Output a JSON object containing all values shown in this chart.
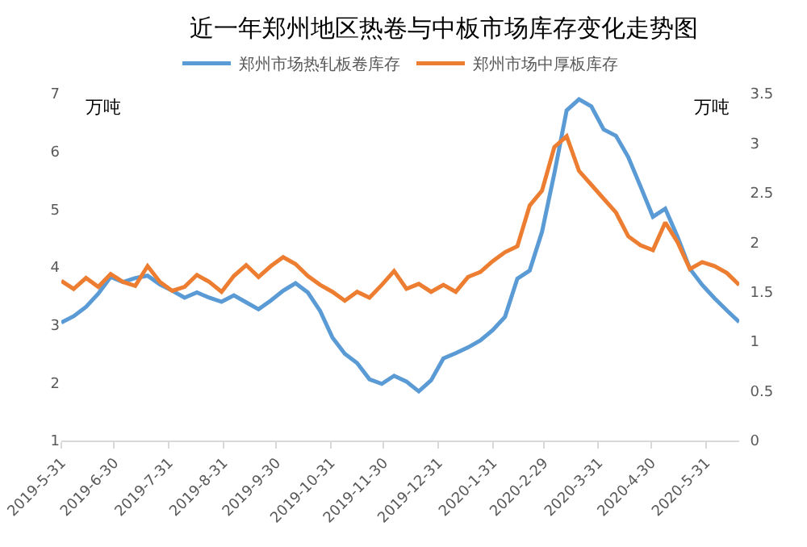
{
  "chart_data": {
    "type": "line",
    "title": "近一年郑州地区热卷与中板市场库存变化走势图",
    "ylabel": "万吨",
    "y2label": "万吨",
    "x": [
      "2019-05-31",
      "2019-06-07",
      "2019-06-14",
      "2019-06-21",
      "2019-06-28",
      "2019-07-05",
      "2019-07-12",
      "2019-07-19",
      "2019-07-26",
      "2019-08-02",
      "2019-08-09",
      "2019-08-16",
      "2019-08-23",
      "2019-08-30",
      "2019-09-06",
      "2019-09-13",
      "2019-09-20",
      "2019-09-27",
      "2019-10-04",
      "2019-10-11",
      "2019-10-18",
      "2019-10-25",
      "2019-11-01",
      "2019-11-08",
      "2019-11-15",
      "2019-11-22",
      "2019-11-29",
      "2019-12-06",
      "2019-12-13",
      "2019-12-20",
      "2019-12-27",
      "2020-01-03",
      "2020-01-10",
      "2020-01-17",
      "2020-01-24",
      "2020-01-31",
      "2020-02-07",
      "2020-02-14",
      "2020-02-21",
      "2020-02-28",
      "2020-03-06",
      "2020-03-13",
      "2020-03-20",
      "2020-03-27",
      "2020-04-03",
      "2020-04-10",
      "2020-04-17",
      "2020-04-24",
      "2020-05-01",
      "2020-05-08",
      "2020-05-15",
      "2020-05-22",
      "2020-05-29",
      "2020-06-05",
      "2020-06-12",
      "2020-06-19"
    ],
    "series": [
      {
        "name": "郑州市场热轧板卷库存",
        "color": "#5b9bd5",
        "values": [
          3.04,
          3.15,
          3.31,
          3.54,
          3.83,
          3.74,
          3.81,
          3.85,
          3.7,
          3.59,
          3.47,
          3.56,
          3.47,
          3.4,
          3.51,
          3.39,
          3.27,
          3.42,
          3.59,
          3.72,
          3.56,
          3.24,
          2.78,
          2.5,
          2.34,
          2.06,
          1.98,
          2.12,
          2.02,
          1.85,
          2.04,
          2.42,
          2.51,
          2.61,
          2.73,
          2.91,
          3.14,
          3.8,
          3.94,
          4.61,
          5.62,
          6.71,
          6.9,
          6.78,
          6.38,
          6.27,
          5.9,
          5.39,
          4.87,
          5.01,
          4.52,
          3.97,
          3.69,
          3.46,
          3.25,
          3.05
        ]
      },
      {
        "name": "郑州市场中厚板库存",
        "color": "#ed7d31",
        "axis": "y2",
        "values": [
          1.61,
          1.53,
          1.64,
          1.55,
          1.68,
          1.6,
          1.56,
          1.76,
          1.6,
          1.51,
          1.55,
          1.67,
          1.6,
          1.5,
          1.66,
          1.77,
          1.65,
          1.76,
          1.85,
          1.78,
          1.66,
          1.57,
          1.5,
          1.41,
          1.5,
          1.44,
          1.57,
          1.71,
          1.53,
          1.58,
          1.5,
          1.57,
          1.5,
          1.65,
          1.7,
          1.81,
          1.9,
          1.96,
          2.37,
          2.52,
          2.96,
          3.07,
          2.72,
          2.58,
          2.44,
          2.3,
          2.06,
          1.97,
          1.92,
          2.2,
          2,
          1.73,
          1.8,
          1.76,
          1.69,
          1.57
        ]
      }
    ],
    "xlim": [
      "2019-05-31",
      "2020-06-19"
    ],
    "xticks": [
      {
        "value": "2019-05-31",
        "label": "2019-5-31"
      },
      {
        "value": "2019-06-30",
        "label": "2019-6-30"
      },
      {
        "value": "2019-07-31",
        "label": "2019-7-31"
      },
      {
        "value": "2019-08-31",
        "label": "2019-8-31"
      },
      {
        "value": "2019-09-30",
        "label": "2019-9-30"
      },
      {
        "value": "2019-10-31",
        "label": "2019-10-31"
      },
      {
        "value": "2019-11-30",
        "label": "2019-11-30"
      },
      {
        "value": "2019-12-31",
        "label": "2019-12-31"
      },
      {
        "value": "2020-01-31",
        "label": "2020-1-31"
      },
      {
        "value": "2020-02-29",
        "label": "2020-2-29"
      },
      {
        "value": "2020-03-31",
        "label": "2020-3-31"
      },
      {
        "value": "2020-04-30",
        "label": "2020-4-30"
      },
      {
        "value": "2020-05-31",
        "label": "2020-5-31"
      }
    ],
    "ylim": [
      1,
      7
    ],
    "yticks": [
      1,
      2,
      3,
      4,
      5,
      6,
      7
    ],
    "y2lim": [
      0,
      3.5
    ],
    "y2ticks": [
      0,
      0.5,
      1,
      1.5,
      2,
      2.5,
      3,
      3.5
    ],
    "grid": false,
    "legend": "top",
    "marker": "none",
    "line_style": "solid"
  }
}
